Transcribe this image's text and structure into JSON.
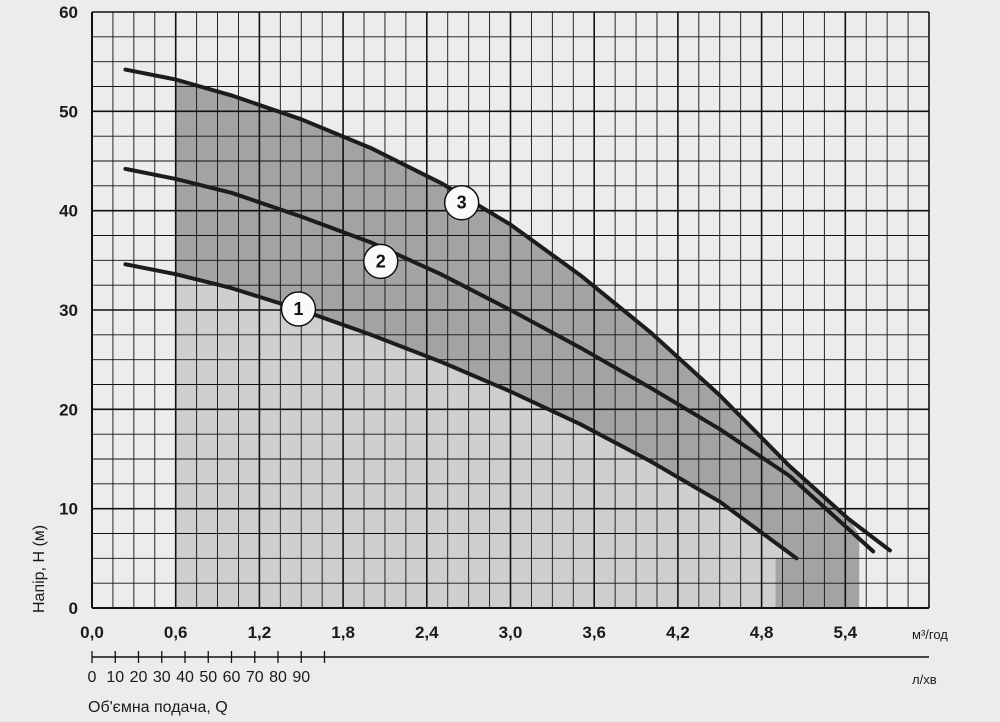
{
  "chart_data": {
    "type": "line",
    "x_top": {
      "unit": "м³/год",
      "ticks": [
        "0,0",
        "0,6",
        "1,2",
        "1,8",
        "2,4",
        "3,0",
        "3,6",
        "4,2",
        "4,8",
        "5,4"
      ],
      "range": [
        0,
        6.0
      ]
    },
    "x_bottom": {
      "unit": "л/хв",
      "label": "Об'ємна подача, Q",
      "ticks": [
        "0",
        "10",
        "20",
        "30",
        "40",
        "50",
        "60",
        "70",
        "80",
        "90"
      ],
      "range": [
        0,
        100
      ]
    },
    "y": {
      "label": "Напір, H (м)",
      "ticks": [
        "0",
        "10",
        "20",
        "30",
        "40",
        "50",
        "60"
      ],
      "range": [
        0,
        60
      ]
    },
    "grid": true,
    "colors": {
      "background": "#ececec",
      "light_region": "#cfcfcf",
      "dark_region": "#a3a3a3",
      "curve": "#1c1c1c",
      "grid": "#111111"
    },
    "operating_region": {
      "x_from": 0.6,
      "x_to": 5.5,
      "light_top": [
        [
          0.6,
          60
        ],
        [
          4.9,
          60
        ],
        [
          5.5,
          60
        ]
      ],
      "step_xs": [
        0.6,
        4.9,
        5.5
      ]
    },
    "series": [
      {
        "name": "1",
        "x": [
          0.24,
          0.6,
          1.0,
          1.5,
          2.0,
          2.5,
          3.0,
          3.5,
          4.0,
          4.5,
          5.05
        ],
        "y": [
          34.6,
          33.6,
          32.2,
          30.0,
          27.5,
          24.8,
          21.8,
          18.5,
          14.8,
          10.7,
          5.0
        ]
      },
      {
        "name": "2",
        "x": [
          0.24,
          0.6,
          1.0,
          1.5,
          2.0,
          2.5,
          3.0,
          3.5,
          4.0,
          4.5,
          5.0,
          5.6
        ],
        "y": [
          44.2,
          43.2,
          41.8,
          39.4,
          36.8,
          33.6,
          30.0,
          26.2,
          22.2,
          18.0,
          13.3,
          5.7
        ]
      },
      {
        "name": "3",
        "x": [
          0.24,
          0.6,
          1.0,
          1.5,
          2.0,
          2.5,
          3.0,
          3.5,
          4.0,
          4.5,
          5.0,
          5.42,
          5.72
        ],
        "y": [
          54.2,
          53.2,
          51.6,
          49.2,
          46.3,
          42.8,
          38.6,
          33.5,
          27.8,
          21.4,
          14.3,
          9.0,
          5.8
        ]
      }
    ],
    "markers": [
      {
        "label": "1",
        "x": 1.48,
        "y": 30.1
      },
      {
        "label": "2",
        "x": 2.07,
        "y": 34.9
      },
      {
        "label": "3",
        "x": 2.65,
        "y": 40.8
      }
    ]
  }
}
